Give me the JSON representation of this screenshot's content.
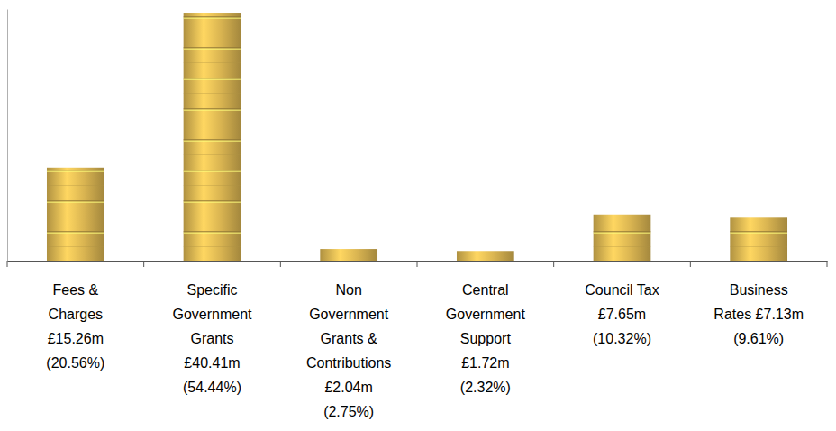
{
  "chart_data": {
    "type": "bar",
    "categories": [
      "Fees & Charges",
      "Specific Government Grants",
      "Non Government Grants & Contributions",
      "Central Government Support",
      "Council Tax",
      "Business Rates"
    ],
    "values": [
      15.26,
      40.41,
      2.04,
      1.72,
      7.65,
      7.13
    ],
    "value_labels": [
      "£15.26m",
      "£40.41m",
      "£2.04m",
      "£1.72m",
      "£7.65m",
      "£7.13m"
    ],
    "shares": [
      20.56,
      54.44,
      2.75,
      2.32,
      10.32,
      9.61
    ],
    "share_labels": [
      "(20.56%)",
      "(54.44%)",
      "(2.75%)",
      "(2.32%)",
      "(10.32%)",
      "(9.61%)"
    ],
    "color": "#d9b451",
    "ylim": [
      0,
      41
    ],
    "tick_labels": "x",
    "data_labels": true,
    "grid": false
  }
}
